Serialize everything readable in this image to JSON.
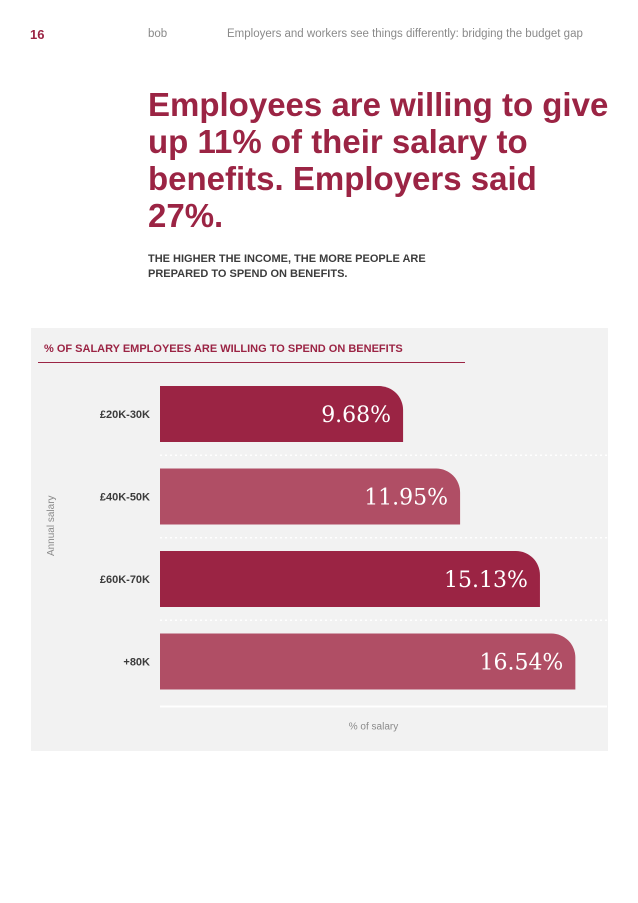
{
  "header": {
    "page_number": "16",
    "brand": "bob",
    "document_title": "Employers and workers see things differently: bridging the budget gap"
  },
  "headline": "Employees are willing to give up 11% of their salary to benefits. Employers said 27%.",
  "subheadline": "THE HIGHER THE INCOME, THE MORE PEOPLE ARE PREPARED TO SPEND ON BENEFITS.",
  "colors": {
    "accent": "#9b2444",
    "accent_light": "#b04e65",
    "panel": "#f2f2f2"
  },
  "chart_data": {
    "type": "bar",
    "orientation": "horizontal",
    "title": "% OF SALARY EMPLOYEES ARE WILLING TO SPEND ON BENEFITS",
    "xlabel": "% of salary",
    "ylabel": "Annual salary",
    "categories": [
      "£20K-30K",
      "£40K-50K",
      "£60K-70K",
      "+80K"
    ],
    "values": [
      9.68,
      11.95,
      15.13,
      16.54
    ],
    "value_labels": [
      "9.68%",
      "11.95%",
      "15.13%",
      "16.54%"
    ],
    "xlim": [
      0,
      17.8
    ],
    "grid": "dotted horizontal separators",
    "colors": [
      "#9b2444",
      "#b04e65",
      "#9b2444",
      "#b04e65"
    ]
  }
}
